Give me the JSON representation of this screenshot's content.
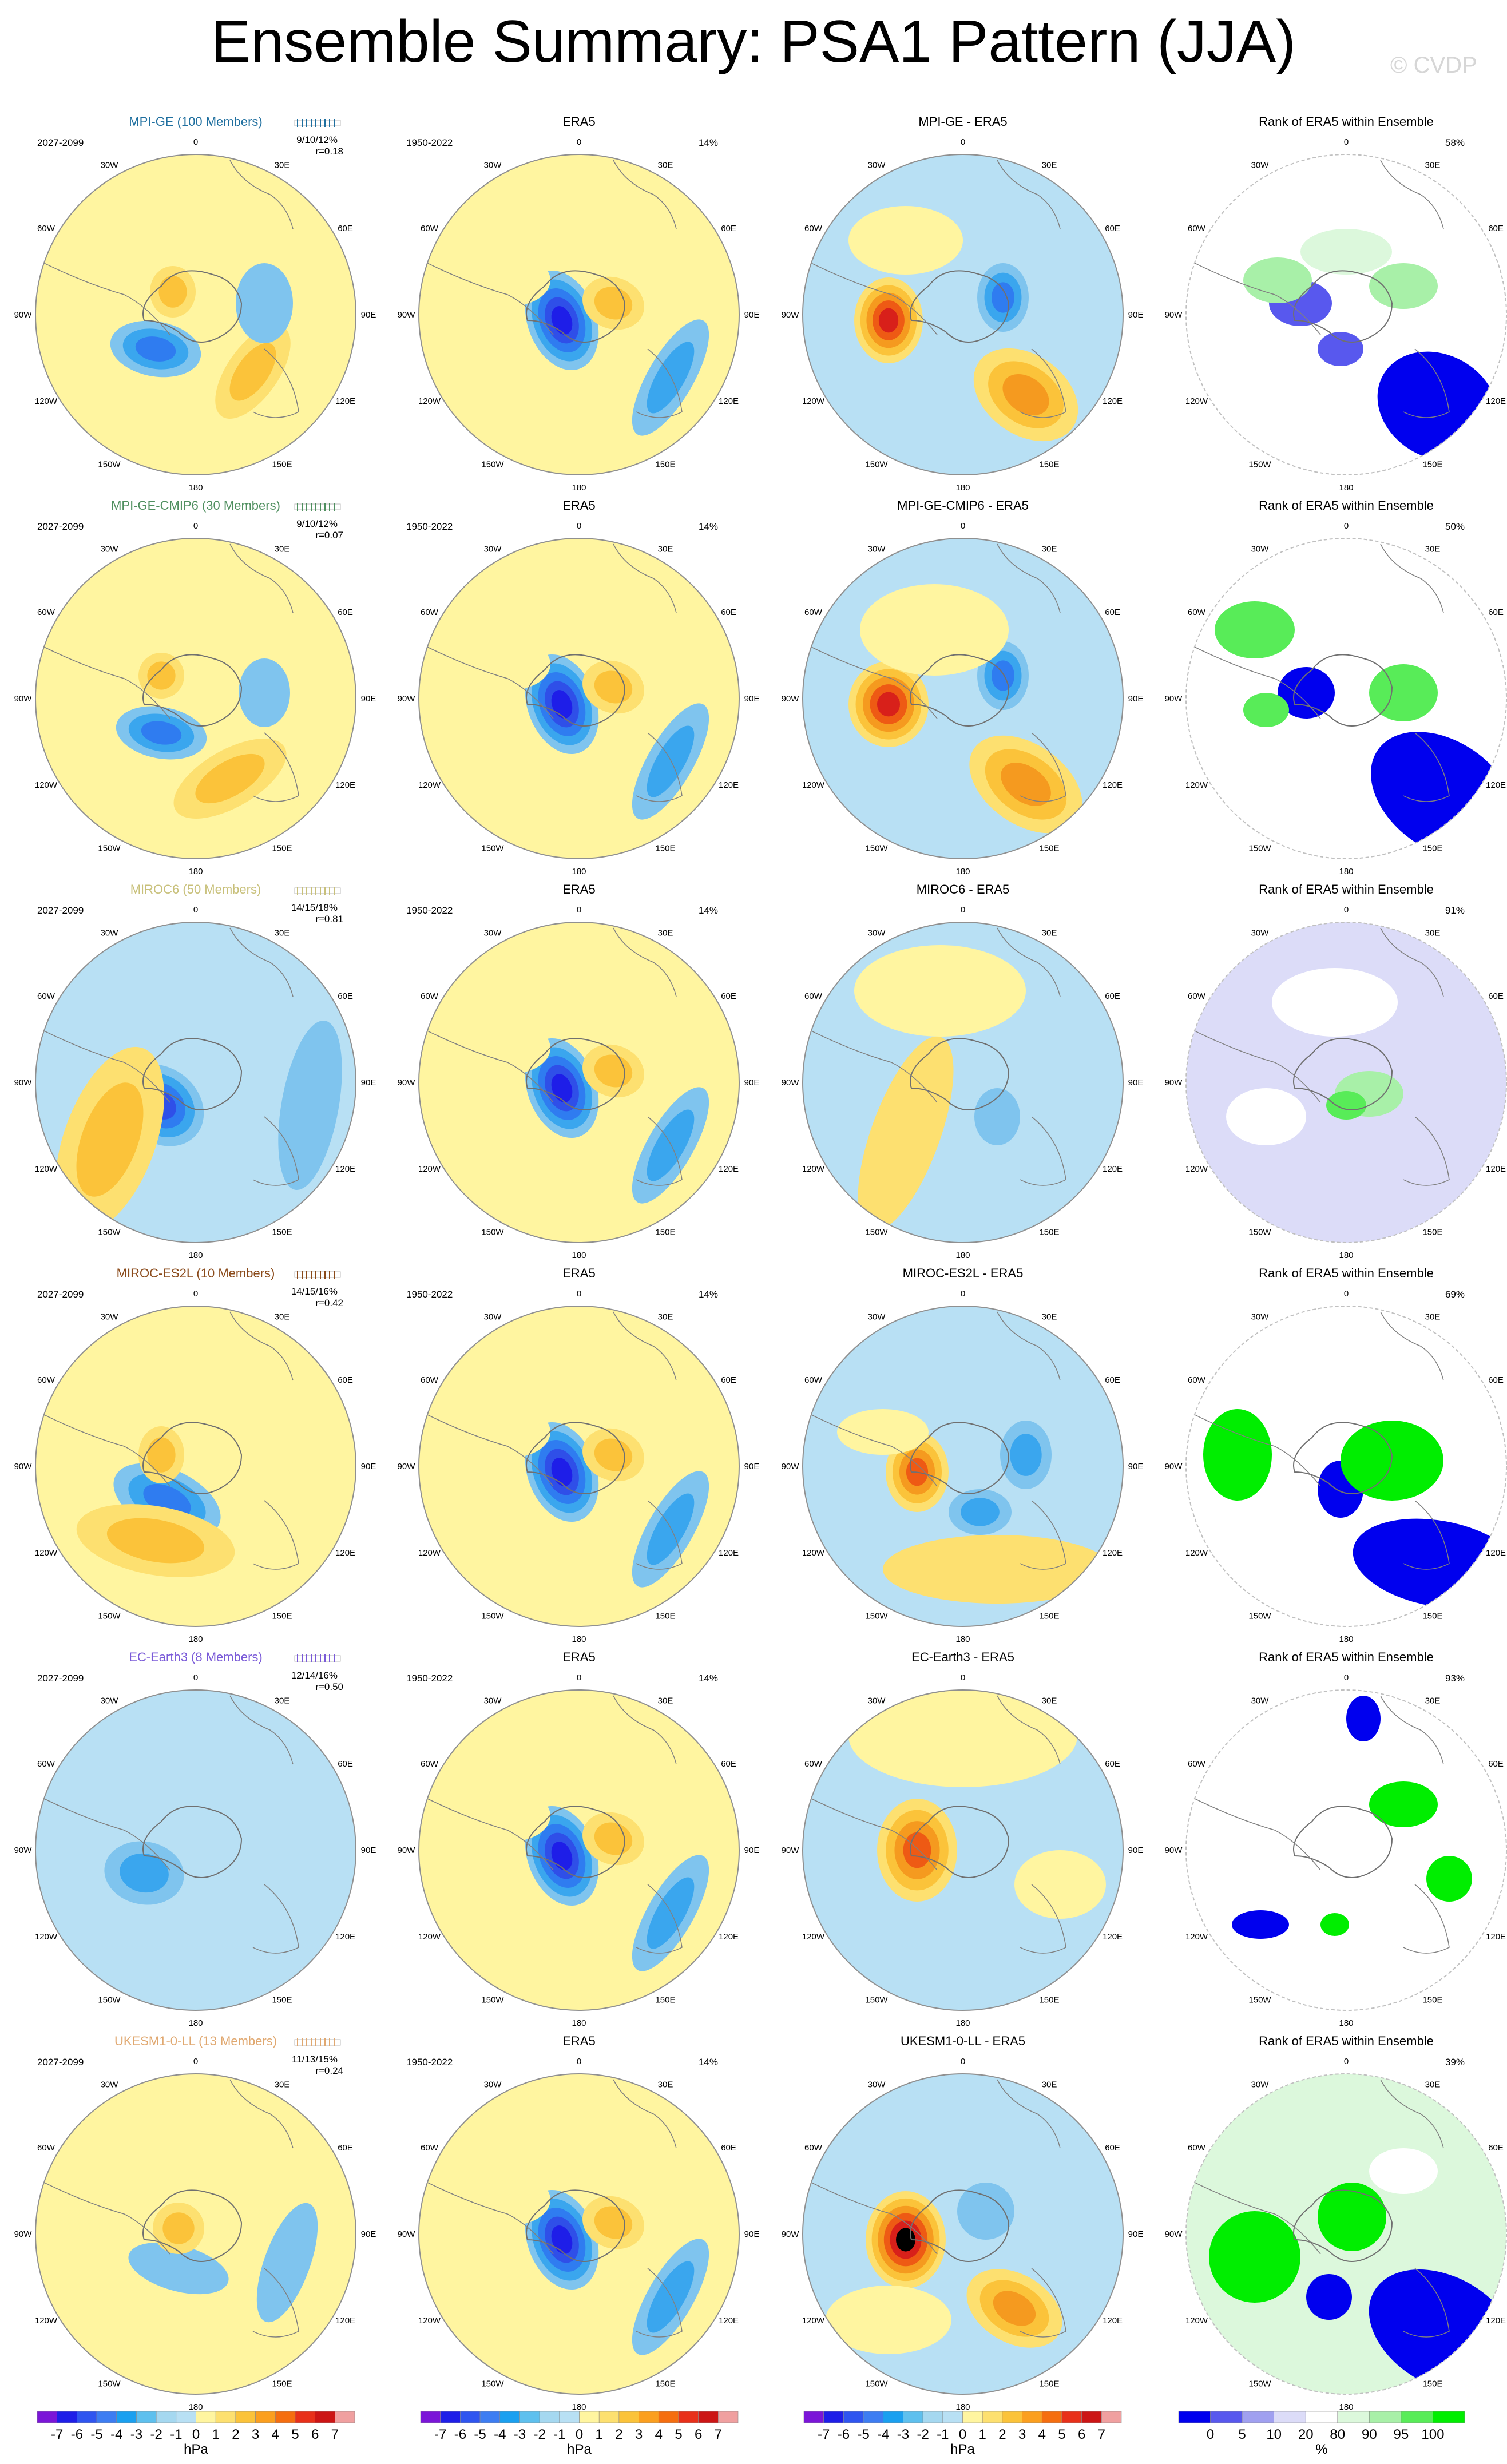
{
  "title": "Ensemble Summary: PSA1 Pattern (JJA)",
  "credit": "© CVDP",
  "chart_data": {
    "type": "map",
    "projection": "south-polar-stereographic",
    "lon_labels": [
      "0",
      "30E",
      "60E",
      "90E",
      "120E",
      "150E",
      "180",
      "150W",
      "120W",
      "90W",
      "60W",
      "30W"
    ],
    "columns": [
      {
        "kind": "ensemble-mean",
        "units": "hPa"
      },
      {
        "kind": "observations",
        "title": "ERA5",
        "period": "1950-2022",
        "units": "hPa"
      },
      {
        "kind": "difference",
        "units": "hPa"
      },
      {
        "kind": "rank",
        "title": "Rank of ERA5 within Ensemble",
        "units": "%"
      }
    ],
    "rows": [
      {
        "model": "MPI-GE",
        "members": "MPI-GE (100 Members)",
        "period": "2027-2099",
        "color": "#1f6f9f",
        "pct": "9/10/12%",
        "r": "r=0.18",
        "obs_pct": "14%",
        "diff_title": "MPI-GE - ERA5",
        "rank_pct": "58%"
      },
      {
        "model": "MPI-GE-CMIP6",
        "members": "MPI-GE-CMIP6 (30 Members)",
        "period": "2027-2099",
        "color": "#4f8f5f",
        "pct": "9/10/12%",
        "r": "r=0.07",
        "obs_pct": "14%",
        "diff_title": "MPI-GE-CMIP6 - ERA5",
        "rank_pct": "50%"
      },
      {
        "model": "MIROC6",
        "members": "MIROC6 (50 Members)",
        "period": "2027-2099",
        "color": "#c8c07a",
        "pct": "14/15/18%",
        "r": "r=0.81",
        "obs_pct": "14%",
        "diff_title": "MIROC6 - ERA5",
        "rank_pct": "91%"
      },
      {
        "model": "MIROC-ES2L",
        "members": "MIROC-ES2L (10 Members)",
        "period": "2027-2099",
        "color": "#8a4a1a",
        "pct": "14/15/16%",
        "r": "r=0.42",
        "obs_pct": "14%",
        "diff_title": "MIROC-ES2L - ERA5",
        "rank_pct": "69%"
      },
      {
        "model": "EC-Earth3",
        "members": "EC-Earth3 (8 Members)",
        "period": "2027-2099",
        "color": "#7a5ad8",
        "pct": "12/14/16%",
        "r": "r=0.50",
        "obs_pct": "14%",
        "diff_title": "EC-Earth3 - ERA5",
        "rank_pct": "93%"
      },
      {
        "model": "UKESM1-0-LL",
        "members": "UKESM1-0-LL (13 Members)",
        "period": "2027-2099",
        "color": "#e0a870",
        "pct": "11/13/15%",
        "r": "r=0.24",
        "obs_pct": "14%",
        "diff_title": "UKESM1-0-LL - ERA5",
        "rank_pct": "39%"
      }
    ],
    "colorbar_hpa": {
      "labels": [
        "-7",
        "-6",
        "-5",
        "-4",
        "-3",
        "-2",
        "-1",
        "0",
        "1",
        "2",
        "3",
        "4",
        "5",
        "6",
        "7"
      ],
      "colors": [
        "#7b16d8",
        "#1e1ee8",
        "#2f55f0",
        "#3d7df2",
        "#1aa0f0",
        "#5ec0ee",
        "#a5d8f0",
        "#b8e0f4",
        "#fff5a0",
        "#fde070",
        "#fbc33a",
        "#fb9f1f",
        "#f56e10",
        "#e8301a",
        "#cc1515",
        "#f0a0a0"
      ],
      "unit": "hPa"
    },
    "colorbar_rank": {
      "labels": [
        "0",
        "5",
        "10",
        "20",
        "80",
        "90",
        "95",
        "100"
      ],
      "colors": [
        "#0000ee",
        "#5858ee",
        "#a0a0f0",
        "#dcdcf8",
        "#ffffff",
        "#dcf8dc",
        "#a8f0a8",
        "#58ec58",
        "#00ee00"
      ],
      "unit": "%"
    }
  }
}
